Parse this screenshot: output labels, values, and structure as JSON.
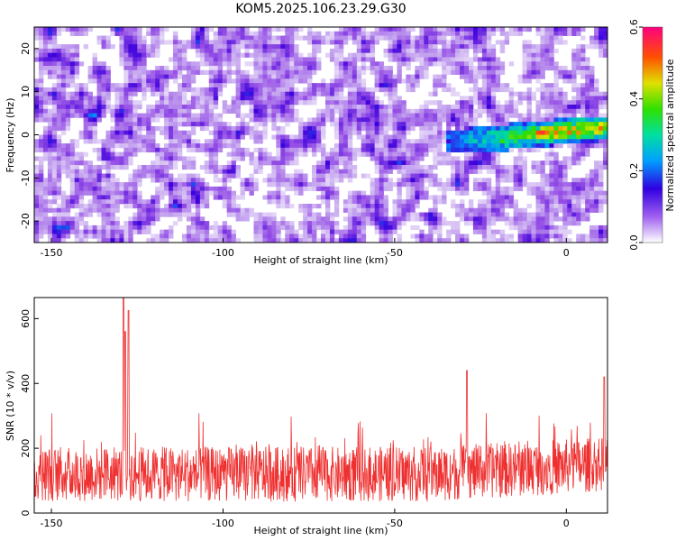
{
  "title": "KOM5.2025.106.23.29.G30",
  "chart_data": [
    {
      "type": "heatmap",
      "xlabel": "Height of straight line (km)",
      "ylabel": "Frequency (Hz)",
      "xlim": [
        -155,
        12
      ],
      "ylim": [
        -25,
        25
      ],
      "xticks": [
        -150,
        -100,
        -50,
        0
      ],
      "yticks": [
        -20,
        -10,
        0,
        10,
        20
      ],
      "colorbar": {
        "label": "Normalized spectral amplitude",
        "range": [
          0.0,
          0.6
        ],
        "ticks": [
          "0.0",
          "0.2",
          "0.4",
          "0.6"
        ]
      },
      "features": [
        {
          "x": [
            -35,
            12
          ],
          "y": [
            -3,
            3
          ],
          "value": 0.55,
          "note": "bright band near 0 Hz"
        }
      ]
    },
    {
      "type": "line",
      "xlabel": "Height of straight line (km)",
      "ylabel": "SNR (10 * v/v)",
      "xlim": [
        -155,
        12
      ],
      "ylim": [
        0,
        665
      ],
      "xticks": [
        -150,
        -100,
        -50,
        0
      ],
      "yticks": [
        0,
        200,
        400,
        600
      ],
      "series": [
        {
          "color": "#ef3030",
          "baseline": 120,
          "peaks": [
            {
              "x": -129,
              "y": 665
            },
            {
              "x": -128.5,
              "y": 560
            },
            {
              "x": -127.5,
              "y": 625
            },
            {
              "x": -29,
              "y": 440
            },
            {
              "x": 11,
              "y": 420
            }
          ]
        }
      ]
    }
  ]
}
